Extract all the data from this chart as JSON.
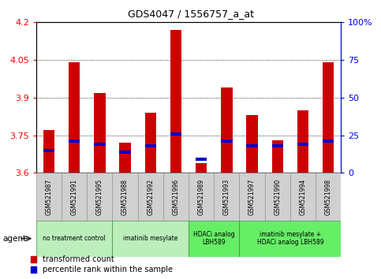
{
  "title": "GDS4047 / 1556757_a_at",
  "samples": [
    "GSM521987",
    "GSM521991",
    "GSM521995",
    "GSM521988",
    "GSM521992",
    "GSM521996",
    "GSM521989",
    "GSM521993",
    "GSM521997",
    "GSM521990",
    "GSM521994",
    "GSM521998"
  ],
  "red_values": [
    3.77,
    4.04,
    3.92,
    3.72,
    3.84,
    4.17,
    3.64,
    3.94,
    3.83,
    3.73,
    3.85,
    4.04
  ],
  "blue_percentile": [
    14,
    20,
    18,
    13,
    17,
    25,
    8,
    20,
    17,
    17,
    18,
    20
  ],
  "ymin": 3.6,
  "ymax": 4.2,
  "yticks_left": [
    3.6,
    3.75,
    3.9,
    4.05,
    4.2
  ],
  "yticks_right": [
    0,
    25,
    50,
    75,
    100
  ],
  "group_spans": [
    {
      "label": "no treatment control",
      "cols": [
        0,
        1,
        2
      ],
      "color": "#bbeebb"
    },
    {
      "label": "imatinib mesylate",
      "cols": [
        3,
        4,
        5
      ],
      "color": "#bbeebb"
    },
    {
      "label": "HDACi analog\nLBH589",
      "cols": [
        6,
        7
      ],
      "color": "#66ee66"
    },
    {
      "label": "imatinib mesylate +\nHDACi analog LBH589",
      "cols": [
        8,
        9,
        10,
        11
      ],
      "color": "#66ee66"
    }
  ],
  "bar_color_red": "#cc0000",
  "bar_color_blue": "#0000cc",
  "bar_width": 0.45,
  "legend_red": "transformed count",
  "legend_blue": "percentile rank within the sample"
}
